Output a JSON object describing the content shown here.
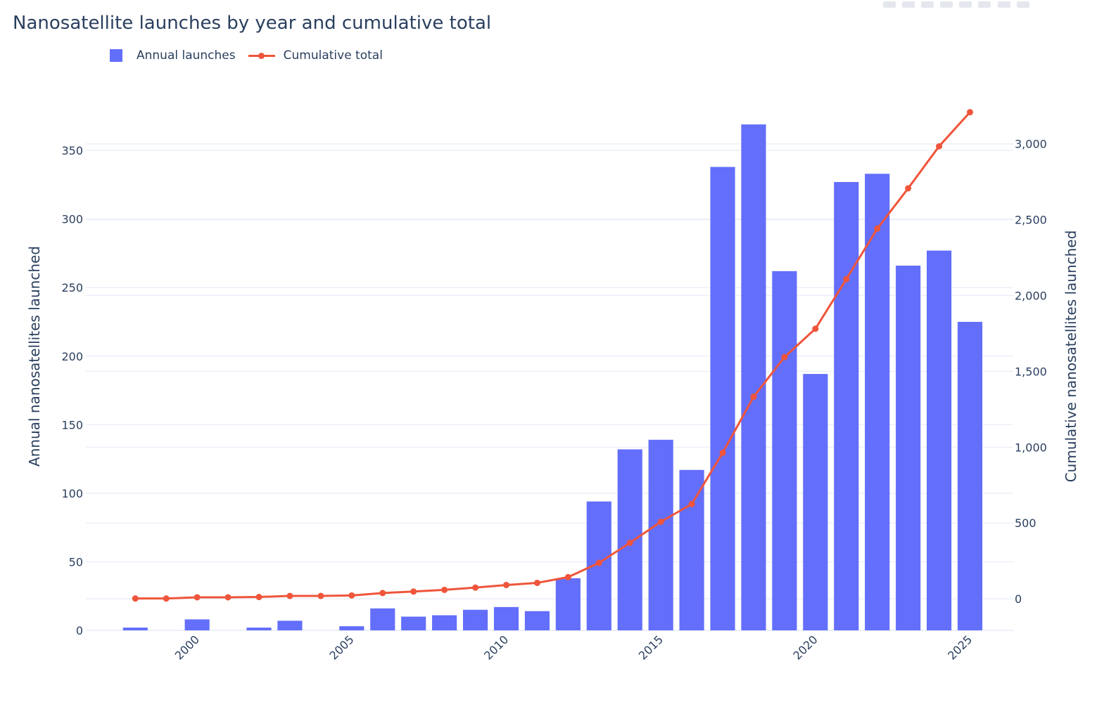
{
  "chart_data": {
    "type": "bar",
    "title": "Nanosatellite launches by year and cumulative total",
    "x": [
      1998,
      1999,
      2000,
      2001,
      2002,
      2003,
      2004,
      2005,
      2006,
      2007,
      2008,
      2009,
      2010,
      2011,
      2012,
      2013,
      2014,
      2015,
      2016,
      2017,
      2018,
      2019,
      2020,
      2021,
      2022,
      2023,
      2024,
      2025
    ],
    "series": [
      {
        "name": "Annual launches",
        "type": "bar",
        "axis": "left",
        "color": "#636efa",
        "values": [
          2,
          0,
          8,
          0,
          2,
          7,
          0,
          3,
          16,
          10,
          11,
          15,
          17,
          14,
          38,
          94,
          132,
          139,
          117,
          338,
          369,
          262,
          187,
          327,
          333,
          266,
          277,
          225
        ]
      },
      {
        "name": "Cumulative total",
        "type": "line",
        "axis": "right",
        "color": "#ef553b",
        "values": [
          2,
          2,
          10,
          10,
          12,
          19,
          19,
          22,
          38,
          48,
          59,
          74,
          91,
          105,
          143,
          237,
          369,
          508,
          625,
          963,
          1332,
          1594,
          1781,
          2108,
          2441,
          2707,
          2984,
          3209
        ]
      }
    ],
    "xticks": [
      "2000",
      "2005",
      "2010",
      "2015",
      "2020",
      "2025"
    ],
    "xtick_values": [
      2000,
      2005,
      2010,
      2015,
      2020,
      2025
    ],
    "xlim": [
      1996.4,
      2026.4
    ],
    "ylabel": "Annual nanosatellites launched",
    "ylim": [
      0,
      388
    ],
    "yticks": [
      "0",
      "50",
      "100",
      "150",
      "200",
      "250",
      "300",
      "350"
    ],
    "ytick_values": [
      0,
      50,
      100,
      150,
      200,
      250,
      300,
      350
    ],
    "y2label": "Cumulative nanosatellites launched",
    "y2lim": [
      -208,
      3300
    ],
    "y2ticks": [
      "0",
      "500",
      "1,000",
      "1,500",
      "2,000",
      "2,500",
      "3,000"
    ],
    "y2tick_values": [
      0,
      500,
      1000,
      1500,
      2000,
      2500,
      3000
    ],
    "legend_position": "top-left",
    "grid": true
  }
}
